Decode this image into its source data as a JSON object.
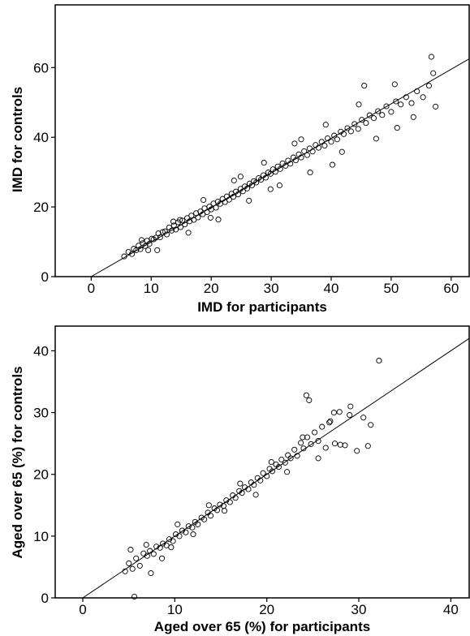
{
  "chart_data": [
    {
      "type": "scatter",
      "title": "",
      "xlabel": "IMD for participants",
      "ylabel": "IMD for controls",
      "xlim": [
        -6,
        63
      ],
      "ylim": [
        0,
        78
      ],
      "xticks": [
        0,
        10,
        20,
        30,
        40,
        50,
        60
      ],
      "yticks": [
        0,
        20,
        40,
        60
      ],
      "grid": false,
      "fit_line": {
        "x": [
          0,
          63
        ],
        "y": [
          0,
          62.5
        ]
      },
      "series": [
        {
          "name": "",
          "x": [
            5.5,
            6.2,
            6.8,
            7.1,
            7.5,
            7.9,
            8.2,
            8.6,
            9.0,
            9.3,
            9.7,
            10.1,
            10.4,
            10.8,
            11.2,
            11.5,
            11.9,
            12.3,
            12.6,
            13.0,
            13.4,
            13.8,
            14.1,
            14.5,
            14.9,
            15.2,
            15.6,
            16.0,
            16.4,
            16.7,
            17.1,
            17.5,
            17.8,
            18.2,
            18.6,
            18.9,
            19.3,
            19.7,
            20.0,
            20.4,
            20.8,
            21.1,
            21.5,
            21.9,
            22.3,
            22.6,
            23.0,
            23.4,
            23.7,
            24.1,
            24.5,
            24.9,
            25.3,
            25.6,
            26.0,
            26.4,
            26.8,
            27.1,
            27.5,
            27.9,
            28.3,
            28.7,
            29.1,
            29.5,
            29.9,
            30.3,
            30.7,
            31.1,
            31.5,
            31.9,
            32.4,
            32.8,
            33.2,
            33.7,
            34.1,
            34.6,
            35.0,
            35.5,
            36.0,
            36.4,
            36.9,
            37.4,
            37.9,
            38.4,
            38.9,
            39.4,
            40.0,
            40.5,
            41.0,
            41.6,
            42.1,
            42.7,
            43.3,
            43.9,
            44.5,
            45.1,
            45.8,
            46.4,
            47.1,
            47.8,
            48.5,
            49.2,
            50.0,
            50.8,
            51.6,
            52.5,
            53.4,
            54.3,
            55.3,
            56.3,
            57.4,
            8.4,
            11.0,
            13.7,
            16.2,
            18.7,
            21.2,
            23.8,
            26.3,
            28.8,
            31.4,
            33.9,
            36.5,
            39.1,
            41.8,
            44.6,
            47.5,
            50.6,
            53.7,
            57.0,
            9.5,
            14.8,
            19.9,
            24.9,
            29.9,
            35.0,
            40.2,
            45.5,
            51.0,
            56.7
          ],
          "y": [
            5.8,
            7.1,
            6.5,
            8.0,
            7.6,
            8.9,
            7.9,
            9.6,
            8.8,
            10.3,
            9.4,
            10.9,
            10.7,
            11.2,
            12.4,
            11.3,
            12.8,
            13.0,
            12.1,
            14.1,
            13.2,
            14.7,
            13.5,
            15.6,
            14.2,
            16.1,
            15.0,
            16.8,
            15.9,
            17.5,
            16.3,
            18.2,
            17.0,
            18.7,
            17.9,
            19.6,
            18.5,
            20.1,
            19.3,
            21.0,
            19.8,
            21.5,
            20.9,
            22.3,
            21.4,
            23.0,
            22.1,
            23.8,
            22.9,
            24.4,
            23.6,
            25.2,
            24.5,
            25.9,
            25.3,
            26.7,
            26.2,
            27.4,
            27.0,
            28.3,
            27.8,
            29.1,
            28.4,
            29.9,
            29.5,
            30.8,
            30.1,
            31.6,
            30.9,
            32.5,
            31.8,
            33.3,
            32.4,
            34.2,
            33.4,
            35.1,
            34.2,
            36.0,
            34.9,
            36.8,
            35.9,
            37.8,
            37.0,
            38.7,
            37.6,
            39.7,
            38.7,
            40.5,
            39.4,
            41.6,
            40.9,
            42.6,
            41.7,
            43.8,
            42.4,
            45.0,
            44.1,
            46.3,
            45.5,
            47.5,
            46.4,
            48.9,
            47.3,
            50.3,
            49.4,
            51.5,
            49.8,
            53.2,
            51.5,
            54.8,
            48.8,
            10.5,
            7.6,
            15.8,
            12.6,
            22.0,
            16.4,
            27.6,
            21.8,
            32.7,
            26.2,
            38.2,
            29.9,
            43.6,
            35.8,
            49.4,
            39.6,
            55.2,
            45.8,
            58.4,
            7.6,
            16.3,
            16.9,
            28.7,
            25.1,
            39.4,
            32.1,
            54.8,
            42.7,
            63.1
          ]
        }
      ]
    },
    {
      "type": "scatter",
      "title": "",
      "xlabel": "Aged over 65 (%) for participants",
      "ylabel": "Aged over 65 (%) for controls",
      "xlim": [
        -3,
        42
      ],
      "ylim": [
        0,
        44
      ],
      "xticks": [
        0,
        10,
        20,
        30,
        40
      ],
      "yticks": [
        0,
        10,
        20,
        30,
        40
      ],
      "grid": false,
      "fit_line": {
        "x": [
          0,
          42
        ],
        "y": [
          0,
          42
        ]
      },
      "series": [
        {
          "name": "",
          "x": [
            4.6,
            5.0,
            5.4,
            5.8,
            6.2,
            6.6,
            7.0,
            7.3,
            7.7,
            8.0,
            8.4,
            8.7,
            9.1,
            9.4,
            9.8,
            10.1,
            10.5,
            10.8,
            11.2,
            11.5,
            11.9,
            12.2,
            12.5,
            12.9,
            13.2,
            13.6,
            13.9,
            14.3,
            14.6,
            14.9,
            15.3,
            15.6,
            16.0,
            16.3,
            16.6,
            17.0,
            17.3,
            17.6,
            18.0,
            18.3,
            18.6,
            19.0,
            19.3,
            19.6,
            20.0,
            20.3,
            20.6,
            21.0,
            21.3,
            21.6,
            22.0,
            22.3,
            22.6,
            23.0,
            23.3,
            23.7,
            24.0,
            24.4,
            24.8,
            25.2,
            25.6,
            26.0,
            26.4,
            26.9,
            27.4,
            27.9,
            28.5,
            29.1,
            29.8,
            30.5,
            31.3,
            32.2,
            5.2,
            6.9,
            8.6,
            10.3,
            12.0,
            13.7,
            15.4,
            17.1,
            18.8,
            20.5,
            22.2,
            23.9,
            25.6,
            27.3,
            29.0,
            5.6,
            24.3,
            24.6,
            26.8,
            28.0,
            7.4,
            9.6,
            31.0
          ],
          "y": [
            4.3,
            5.6,
            4.7,
            6.4,
            5.2,
            7.2,
            6.8,
            7.6,
            7.1,
            8.3,
            8.1,
            8.8,
            8.5,
            9.5,
            9.2,
            10.3,
            10.0,
            10.9,
            10.6,
            11.6,
            11.4,
            12.3,
            11.9,
            13.0,
            12.7,
            13.8,
            13.3,
            14.5,
            14.2,
            15.1,
            14.9,
            15.8,
            15.5,
            16.6,
            16.2,
            17.3,
            17.0,
            17.9,
            17.6,
            18.7,
            18.3,
            19.4,
            19.0,
            20.2,
            19.7,
            20.9,
            20.5,
            21.6,
            21.2,
            22.4,
            21.9,
            23.1,
            22.6,
            24.0,
            23.0,
            25.1,
            24.2,
            26.0,
            24.9,
            26.8,
            25.4,
            27.7,
            24.3,
            28.6,
            25.0,
            30.1,
            24.7,
            31.0,
            23.8,
            29.2,
            28.0,
            38.4,
            7.8,
            8.6,
            6.4,
            11.9,
            10.3,
            15.0,
            14.1,
            18.5,
            16.7,
            22.0,
            20.4,
            26.0,
            22.6,
            30.0,
            29.6,
            0.2,
            32.8,
            32.0,
            28.4,
            24.8,
            4.0,
            8.2,
            24.6
          ]
        }
      ]
    }
  ]
}
